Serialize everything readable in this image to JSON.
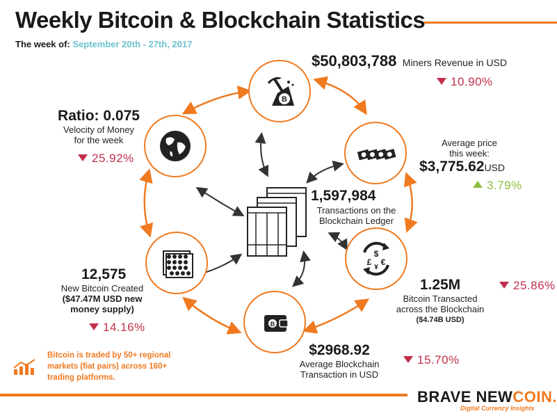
{
  "title": "Weekly Bitcoin & Blockchain Statistics",
  "week_label": "The week of:",
  "week_dates": "September 20th - 27th, 2017",
  "miners": {
    "value": "$50,803,788",
    "label": "Miners Revenue in USD",
    "change": "10.90%",
    "direction": "down"
  },
  "price": {
    "label_line1": "Average price",
    "label_line2": "this week:",
    "value": "$3,775.62",
    "unit": "USD",
    "change": "3.79%",
    "direction": "up"
  },
  "ratio": {
    "value": "Ratio: 0.075",
    "label_line1": "Velocity of Money",
    "label_line2": "for the week",
    "change": "25.92%",
    "direction": "down"
  },
  "transactions": {
    "value": "1,597,984",
    "label_line1": "Transactions on the",
    "label_line2": "Blockchain Ledger"
  },
  "new_bitcoin": {
    "value": "12,575",
    "label_line1": "New Bitcoin Created",
    "label_line2": "($47.47M USD new",
    "label_line3": "money supply)",
    "change": "14.16%",
    "direction": "down"
  },
  "transacted": {
    "value": "1.25M",
    "label_line1": "Bitcoin Transacted",
    "label_line2": "across the Blockchain",
    "label_line3": "($4.74B USD)",
    "change": "25.86%",
    "direction": "down"
  },
  "avg_tx": {
    "value": "$2968.92",
    "label_line1": "Average Blockchain",
    "label_line2": "Transaction in USD",
    "change": "15.70%",
    "direction": "down"
  },
  "note": "Bitcoin is traded by 50+ regional markets (fiat pairs) across 160+ trading platforms.",
  "brand": {
    "name_part1": "BRAVE NEW",
    "name_part2": "COIN.",
    "tagline": "Digital Currency Insights"
  },
  "colors": {
    "accent": "#f07a20",
    "teal": "#6cc1cc",
    "down": "#c0304a",
    "up": "#8bbd3b",
    "ink": "#1a1a1a"
  },
  "icons": [
    "pickaxe-bitcoin-icon",
    "banknotes-icon",
    "globe-icon",
    "ledger-pages-icon",
    "coin-stacks-icon",
    "currency-exchange-icon",
    "wallet-icon",
    "growth-chart-icon"
  ]
}
